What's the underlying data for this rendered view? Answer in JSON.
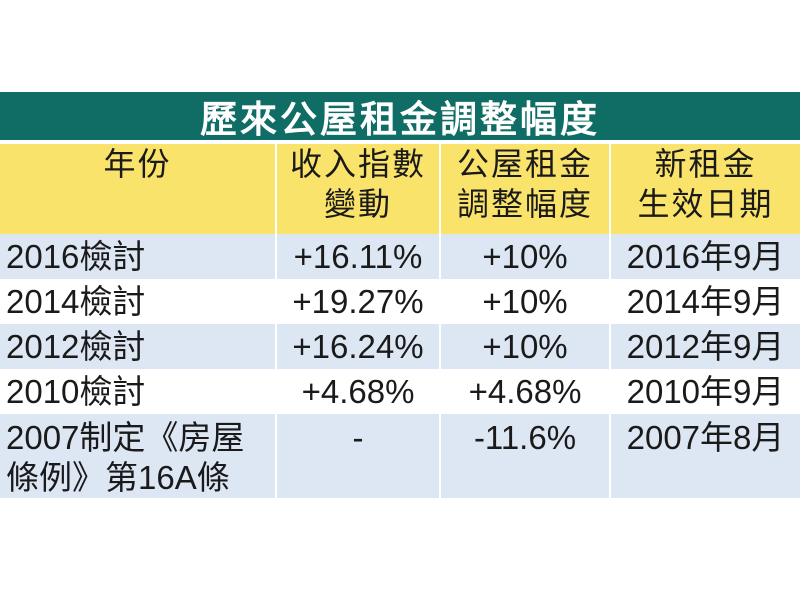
{
  "title": "歷來公屋租金調整幅度",
  "chart_data": {
    "type": "table",
    "title": "歷來公屋租金調整幅度",
    "columns": [
      {
        "lines": [
          "年份"
        ]
      },
      {
        "lines": [
          "收入指數",
          "變動"
        ]
      },
      {
        "lines": [
          "公屋租金",
          "調整幅度"
        ]
      },
      {
        "lines": [
          "新租金",
          "生效日期"
        ]
      }
    ],
    "rows": [
      {
        "year": "2016檢討",
        "income_index_change": "+16.11%",
        "rent_adjustment": "+10%",
        "effective_date": "2016年9月"
      },
      {
        "year": "2014檢討",
        "income_index_change": "+19.27%",
        "rent_adjustment": "+10%",
        "effective_date": "2014年9月"
      },
      {
        "year": "2012檢討",
        "income_index_change": "+16.24%",
        "rent_adjustment": "+10%",
        "effective_date": "2012年9月"
      },
      {
        "year": "2010檢討",
        "income_index_change": "+4.68%",
        "rent_adjustment": "+4.68%",
        "effective_date": "2010年9月"
      },
      {
        "year_lines": [
          "2007制定《房屋",
          "條例》第16A條"
        ],
        "income_index_change": "-",
        "rent_adjustment": "-11.6%",
        "effective_date": "2007年8月"
      }
    ]
  },
  "colors": {
    "title_bg": "#0f6d66",
    "header_bg": "#f9e36a",
    "stripe_bg": "#dde6f3"
  }
}
